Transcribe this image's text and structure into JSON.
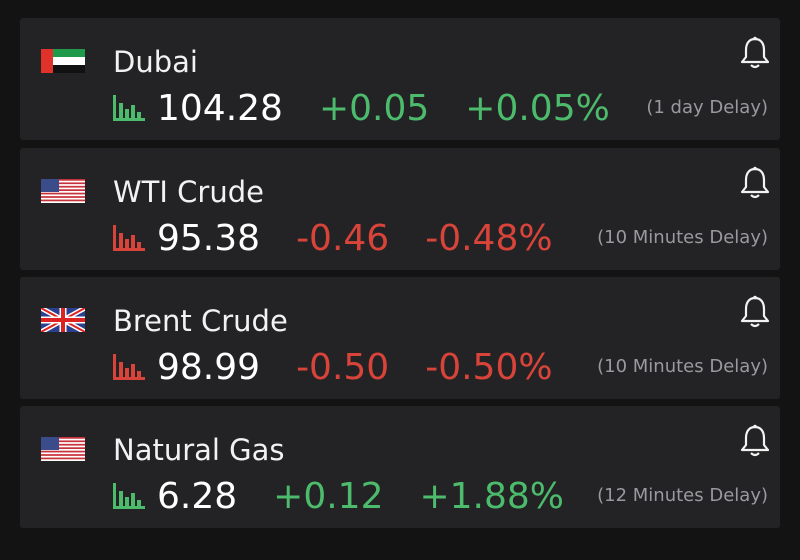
{
  "items": [
    {
      "name": "Dubai",
      "price": "104.28",
      "change": "+0.05",
      "change_pct": "+0.05%",
      "delay": "(1 day Delay)"
    },
    {
      "name": "WTI Crude",
      "price": "95.38",
      "change": "-0.46",
      "change_pct": "-0.48%",
      "delay": "(10 Minutes Delay)"
    },
    {
      "name": "Brent Crude",
      "price": "98.99",
      "change": "-0.50",
      "change_pct": "-0.50%",
      "delay": "(10 Minutes Delay)"
    },
    {
      "name": "Natural Gas",
      "price": "6.28",
      "change": "+0.12",
      "change_pct": "+1.88%",
      "delay": "(12 Minutes Delay)"
    }
  ]
}
